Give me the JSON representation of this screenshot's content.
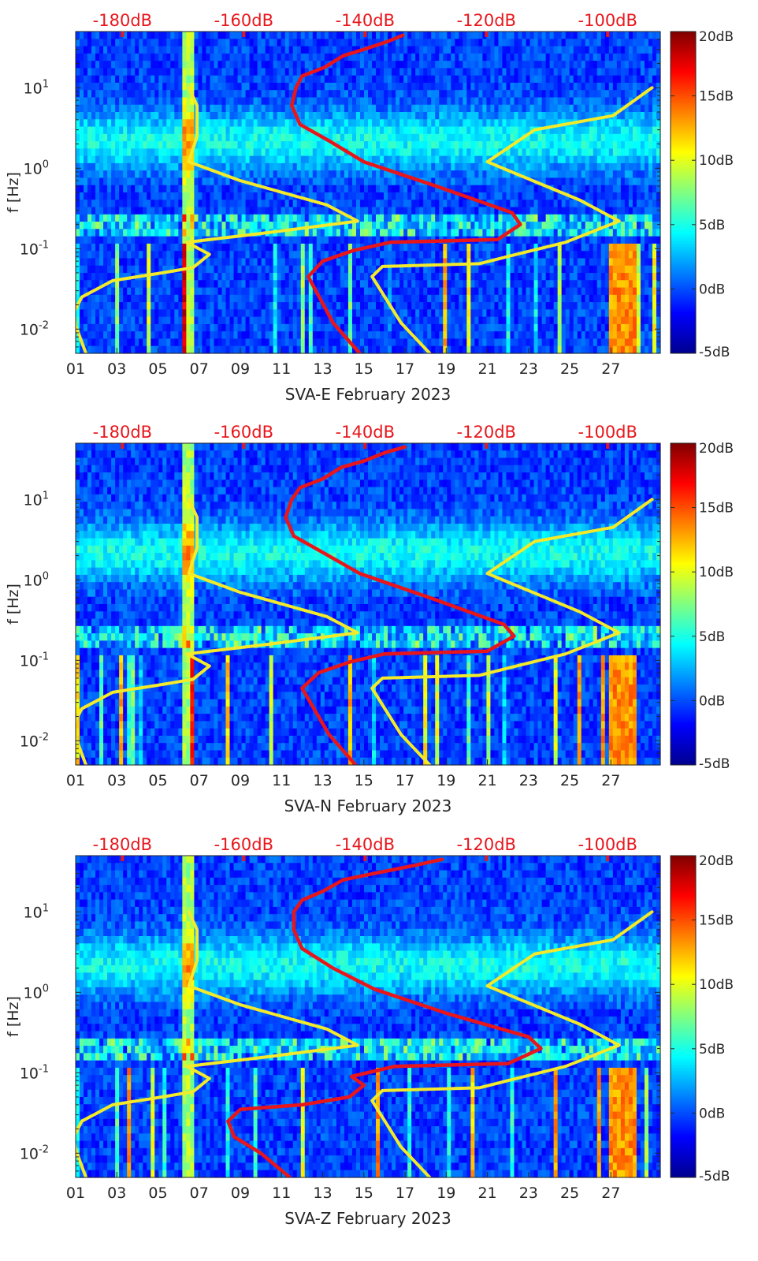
{
  "colors": {
    "red_line": "#e8161b",
    "yellow_line": "#f2ea2a",
    "top_label": "#e8161b",
    "colormap": [
      "#00008f",
      "#0000ff",
      "#0080ff",
      "#00ffff",
      "#80ff80",
      "#ffff00",
      "#ff8000",
      "#ff0000",
      "#800000"
    ]
  },
  "chart_data": [
    {
      "type": "heatmap",
      "xlabel": "SVA-E February 2023",
      "ylabel": "f [Hz]",
      "x_ticks": [
        "01",
        "03",
        "05",
        "07",
        "09",
        "11",
        "13",
        "15",
        "17",
        "19",
        "21",
        "23",
        "25",
        "27"
      ],
      "y_ticks": [
        "10^{-2}",
        "10^{-1}",
        "10^{0}",
        "10^{1}"
      ],
      "ylim": [
        0.005,
        50
      ],
      "yscale": "log",
      "top_axis_labels": [
        "-180dB",
        "-160dB",
        "-140dB",
        "-120dB",
        "-100dB"
      ],
      "colorbar": {
        "range": [
          -5,
          20
        ],
        "ticks": [
          "20dB",
          "15dB",
          "10dB",
          "5dB",
          "0dB",
          "-5dB"
        ]
      },
      "series": [
        {
          "color": "red",
          "x": [
            14.8,
            13.5,
            12.3,
            13.0,
            14.5,
            16.3,
            21.5,
            22.6,
            22.2,
            18.5,
            15.0,
            13.3,
            11.9,
            11.5,
            11.7,
            12.0,
            13.1,
            14.0,
            15.0,
            16.2,
            16.9
          ],
          "y": [
            0.005,
            0.012,
            0.045,
            0.07,
            0.095,
            0.12,
            0.13,
            0.2,
            0.28,
            0.6,
            1.2,
            2.2,
            3.5,
            6,
            10,
            14,
            18,
            25,
            30,
            38,
            45
          ]
        },
        {
          "color": "yellow",
          "x": [
            1.5,
            1.0,
            0.9,
            1.3,
            2.8,
            5.2,
            6.7,
            7.5,
            6.4,
            10.5,
            14.7,
            13.2,
            9.0,
            6.5,
            6.9,
            6.9,
            6.5
          ],
          "y": [
            0.005,
            0.011,
            0.016,
            0.025,
            0.04,
            0.05,
            0.058,
            0.085,
            0.12,
            0.16,
            0.22,
            0.35,
            0.7,
            1.2,
            2.5,
            6,
            10
          ]
        },
        {
          "color": "yellow",
          "x": [
            18.2,
            16.8,
            15.4,
            15.9,
            20.6,
            22.0,
            24.8,
            27.4,
            25.5,
            21.0,
            23.3,
            27.1,
            29.0
          ],
          "y": [
            0.005,
            0.012,
            0.045,
            0.06,
            0.065,
            0.08,
            0.12,
            0.22,
            0.4,
            1.2,
            3,
            4.5,
            10
          ]
        }
      ]
    },
    {
      "type": "heatmap",
      "xlabel": "SVA-N February 2023",
      "ylabel": "f [Hz]",
      "x_ticks": [
        "01",
        "03",
        "05",
        "07",
        "09",
        "11",
        "13",
        "15",
        "17",
        "19",
        "21",
        "23",
        "25",
        "27"
      ],
      "y_ticks": [
        "10^{-2}",
        "10^{-1}",
        "10^{0}",
        "10^{1}"
      ],
      "ylim": [
        0.005,
        50
      ],
      "yscale": "log",
      "top_axis_labels": [
        "-180dB",
        "-160dB",
        "-140dB",
        "-120dB",
        "-100dB"
      ],
      "colorbar": {
        "range": [
          -5,
          20
        ],
        "ticks": [
          "20dB",
          "15dB",
          "10dB",
          "5dB",
          "0dB",
          "-5dB"
        ]
      },
      "series": [
        {
          "color": "red",
          "x": [
            14.6,
            13.3,
            12.0,
            12.8,
            14.3,
            16.0,
            21.0,
            22.3,
            21.8,
            18.2,
            14.8,
            13.0,
            11.6,
            11.2,
            11.5,
            11.9,
            13.0,
            13.9,
            15.0,
            16.0,
            17.0
          ],
          "y": [
            0.005,
            0.012,
            0.045,
            0.07,
            0.095,
            0.12,
            0.13,
            0.2,
            0.28,
            0.6,
            1.2,
            2.2,
            3.5,
            6,
            10,
            14,
            18,
            25,
            30,
            38,
            45
          ]
        },
        {
          "color": "yellow",
          "x": [
            1.5,
            1.0,
            0.9,
            1.3,
            2.8,
            5.2,
            6.7,
            7.5,
            6.4,
            10.5,
            14.7,
            13.2,
            9.0,
            6.5,
            6.9,
            6.9,
            6.5
          ],
          "y": [
            0.005,
            0.011,
            0.016,
            0.025,
            0.04,
            0.05,
            0.058,
            0.085,
            0.12,
            0.16,
            0.22,
            0.35,
            0.7,
            1.2,
            2.5,
            6,
            10
          ]
        },
        {
          "color": "yellow",
          "x": [
            18.2,
            16.8,
            15.4,
            15.9,
            20.6,
            22.0,
            24.8,
            27.4,
            25.5,
            21.0,
            23.3,
            27.1,
            29.0
          ],
          "y": [
            0.005,
            0.012,
            0.045,
            0.06,
            0.065,
            0.08,
            0.12,
            0.22,
            0.4,
            1.2,
            3,
            4.5,
            10
          ]
        }
      ]
    },
    {
      "type": "heatmap",
      "xlabel": "SVA-Z February 2023",
      "ylabel": "f [Hz]",
      "x_ticks": [
        "01",
        "03",
        "05",
        "07",
        "09",
        "11",
        "13",
        "15",
        "17",
        "19",
        "21",
        "23",
        "25",
        "27"
      ],
      "y_ticks": [
        "10^{-2}",
        "10^{-1}",
        "10^{0}",
        "10^{1}"
      ],
      "ylim": [
        0.005,
        50
      ],
      "yscale": "log",
      "top_axis_labels": [
        "-180dB",
        "-160dB",
        "-140dB",
        "-120dB",
        "-100dB"
      ],
      "colorbar": {
        "range": [
          -5,
          20
        ],
        "ticks": [
          "20dB",
          "15dB",
          "10dB",
          "5dB",
          "0dB",
          "-5dB"
        ]
      },
      "series": [
        {
          "color": "red",
          "x": [
            11.4,
            10.0,
            8.7,
            8.4,
            9.0,
            12.0,
            14.3,
            15.0,
            14.4,
            16.5,
            22.0,
            23.6,
            23.0,
            19.0,
            15.5,
            13.5,
            12.0,
            11.6,
            11.6,
            12.0,
            13.0,
            14.0,
            15.5,
            17.5,
            18.8
          ],
          "y": [
            0.005,
            0.01,
            0.016,
            0.025,
            0.035,
            0.04,
            0.05,
            0.07,
            0.09,
            0.12,
            0.13,
            0.2,
            0.28,
            0.55,
            1.1,
            2.0,
            3.5,
            6,
            10,
            14,
            18,
            25,
            30,
            38,
            45
          ]
        },
        {
          "color": "yellow",
          "x": [
            1.5,
            1.0,
            0.9,
            1.3,
            2.8,
            5.2,
            6.7,
            7.5,
            6.4,
            10.5,
            14.7,
            13.2,
            9.0,
            6.5,
            6.9,
            6.9,
            6.5
          ],
          "y": [
            0.005,
            0.011,
            0.016,
            0.025,
            0.04,
            0.05,
            0.058,
            0.085,
            0.12,
            0.16,
            0.22,
            0.35,
            0.7,
            1.2,
            2.5,
            6,
            10
          ]
        },
        {
          "color": "yellow",
          "x": [
            18.2,
            16.8,
            15.4,
            15.9,
            20.6,
            22.0,
            24.8,
            27.4,
            25.5,
            21.0,
            23.3,
            27.1,
            29.0
          ],
          "y": [
            0.005,
            0.012,
            0.045,
            0.06,
            0.065,
            0.08,
            0.12,
            0.22,
            0.4,
            1.2,
            3,
            4.5,
            10
          ]
        }
      ]
    }
  ]
}
